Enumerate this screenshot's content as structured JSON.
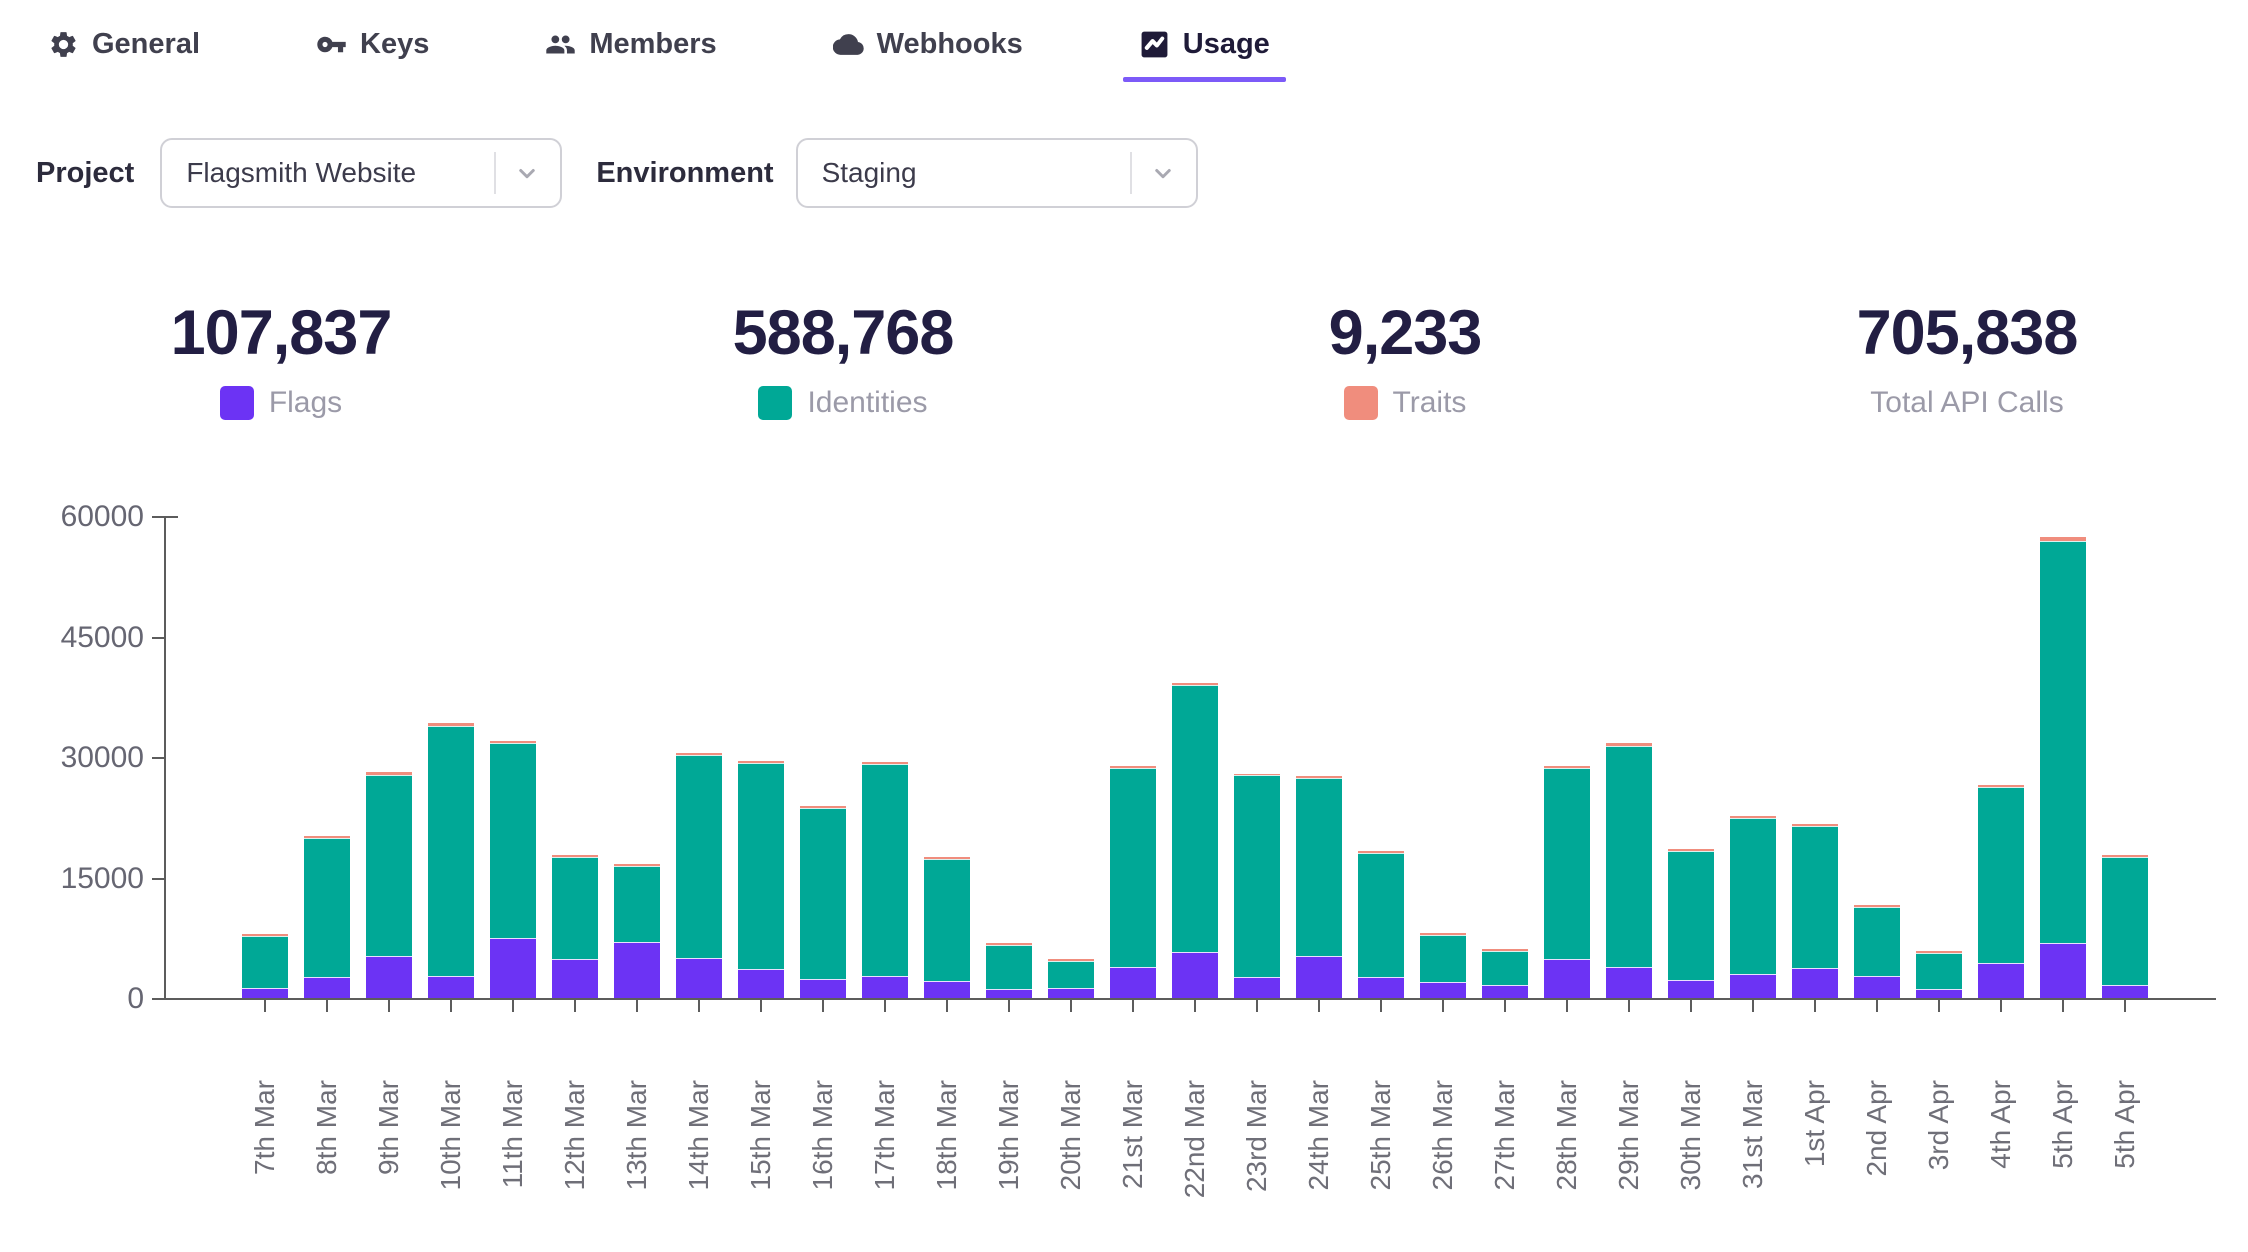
{
  "tabs": [
    {
      "label": "General",
      "icon": "gear-icon",
      "active": false
    },
    {
      "label": "Keys",
      "icon": "key-icon",
      "active": false
    },
    {
      "label": "Members",
      "icon": "members-icon",
      "active": false
    },
    {
      "label": "Webhooks",
      "icon": "cloud-icon",
      "active": false
    },
    {
      "label": "Usage",
      "icon": "chart-icon",
      "active": true
    }
  ],
  "filters": {
    "project_label": "Project",
    "project_value": "Flagsmith Website",
    "environment_label": "Environment",
    "environment_value": "Staging"
  },
  "stats": [
    {
      "value": "107,837",
      "label": "Flags",
      "color": "#6C33F4"
    },
    {
      "value": "588,768",
      "label": "Identities",
      "color": "#00A896"
    },
    {
      "value": "9,233",
      "label": "Traits",
      "color": "#F08D7D"
    },
    {
      "value": "705,838",
      "label": "Total API Calls",
      "color": null
    }
  ],
  "colors": {
    "flags": "#6C33F4",
    "identities": "#00A896",
    "traits": "#F08D7D",
    "accent_underline": "#7C5AF8",
    "axis": "#5c5c5c"
  },
  "chart_data": {
    "type": "bar",
    "stacked": true,
    "title": "",
    "xlabel": "",
    "ylabel": "",
    "ylim": [
      0,
      60000
    ],
    "yticks": [
      0,
      15000,
      30000,
      45000,
      60000
    ],
    "grid": false,
    "legend_position": "above-in-stats",
    "categories": [
      "7th Mar",
      "8th Mar",
      "9th Mar",
      "10th Mar",
      "11th Mar",
      "12th Mar",
      "13th Mar",
      "14th Mar",
      "15th Mar",
      "16th Mar",
      "17th Mar",
      "18th Mar",
      "19th Mar",
      "20th Mar",
      "21st Mar",
      "22nd Mar",
      "23rd Mar",
      "24th Mar",
      "25th Mar",
      "26th Mar",
      "27th Mar",
      "28th Mar",
      "29th Mar",
      "30th Mar",
      "31st Mar",
      "1st Apr",
      "2nd Apr",
      "3rd Apr",
      "4th Apr",
      "5th Apr",
      "5th Apr"
    ],
    "series": [
      {
        "name": "Flags",
        "color": "#6C33F4",
        "values": [
          1100,
          2500,
          5100,
          2600,
          7400,
          4800,
          6900,
          4900,
          3500,
          2300,
          2600,
          2000,
          1100,
          1200,
          3800,
          5600,
          2500,
          5100,
          2500,
          1900,
          1600,
          4800,
          3800,
          2200,
          2900,
          3700,
          2700,
          1100,
          4300,
          6800,
          1500
        ]
      },
      {
        "name": "Identities",
        "color": "#00A896",
        "values": [
          6600,
          17400,
          22700,
          31200,
          24300,
          12700,
          9500,
          25300,
          25700,
          21300,
          26500,
          15300,
          5450,
          3350,
          24800,
          33300,
          25200,
          22300,
          15500,
          5900,
          4300,
          23800,
          27600,
          16100,
          19500,
          17700,
          8650,
          4450,
          22000,
          50100,
          16100
        ]
      },
      {
        "name": "Traits",
        "color": "#F08D7D",
        "values": [
          200,
          300,
          350,
          450,
          300,
          150,
          150,
          300,
          300,
          250,
          300,
          150,
          80,
          80,
          300,
          350,
          250,
          250,
          150,
          100,
          100,
          300,
          300,
          150,
          250,
          250,
          100,
          80,
          250,
          450,
          150
        ]
      }
    ]
  }
}
